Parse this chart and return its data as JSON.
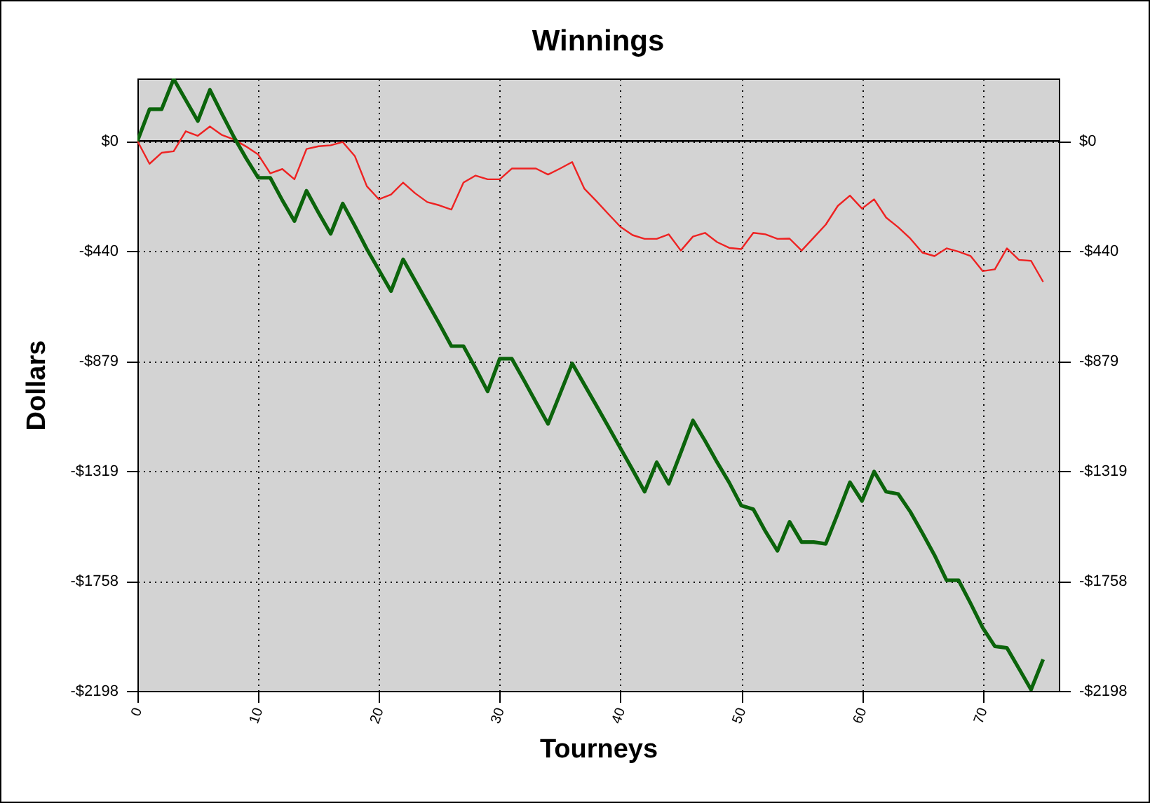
{
  "chart_data": {
    "type": "line",
    "title": "Winnings",
    "xlabel": "Tourneys",
    "ylabel": "Dollars",
    "x": [
      0,
      1,
      2,
      3,
      4,
      5,
      6,
      7,
      8,
      9,
      10,
      11,
      12,
      13,
      14,
      15,
      16,
      17,
      18,
      19,
      20,
      21,
      22,
      23,
      24,
      25,
      26,
      27,
      28,
      29,
      30,
      31,
      32,
      33,
      34,
      35,
      36,
      37,
      38,
      39,
      40,
      41,
      42,
      43,
      44,
      45,
      46,
      47,
      48,
      49,
      50,
      51,
      52,
      53,
      54,
      55,
      56,
      57,
      58,
      59,
      60,
      61,
      62,
      63,
      64,
      65,
      66,
      67,
      68,
      69,
      70,
      71,
      72,
      73,
      74,
      75
    ],
    "series": [
      {
        "color": "#ee2222",
        "values": [
          0,
          -91,
          -47,
          -41,
          39,
          21,
          58,
          24,
          6,
          -22,
          -54,
          -129,
          -112,
          -153,
          -32,
          -21,
          -17,
          -4,
          -60,
          -181,
          -233,
          -214,
          -166,
          -209,
          -244,
          -257,
          -274,
          -166,
          -138,
          -153,
          -153,
          -110,
          -110,
          -110,
          -134,
          -110,
          -84,
          -190,
          -240,
          -292,
          -343,
          -376,
          -391,
          -391,
          -373,
          -438,
          -382,
          -367,
          -404,
          -427,
          -432,
          -367,
          -373,
          -391,
          -390,
          -438,
          -386,
          -334,
          -259,
          -218,
          -270,
          -233,
          -306,
          -345,
          -390,
          -446,
          -460,
          -429,
          -442,
          -460,
          -520,
          -513,
          -429,
          -475,
          -479,
          -563
        ]
      },
      {
        "color": "#0b640b",
        "values": [
          0,
          127,
          127,
          248,
          164,
          80,
          205,
          108,
          15,
          -69,
          -147,
          -147,
          -237,
          -320,
          -199,
          -287,
          -371,
          -250,
          -339,
          -432,
          -516,
          -600,
          -473,
          -559,
          -645,
          -731,
          -820,
          -820,
          -908,
          -1001,
          -870,
          -870,
          -956,
          -1044,
          -1131,
          -1010,
          -889,
          -973,
          -1057,
          -1142,
          -1228,
          -1314,
          -1402,
          -1284,
          -1370,
          -1245,
          -1117,
          -1198,
          -1284,
          -1365,
          -1457,
          -1472,
          -1560,
          -1638,
          -1522,
          -1603,
          -1603,
          -1610,
          -1489,
          -1364,
          -1439,
          -1321,
          -1402,
          -1411,
          -1482,
          -1567,
          -1655,
          -1756,
          -1756,
          -1849,
          -1946,
          -2020,
          -2026,
          -2109,
          -2193,
          -2072
        ]
      }
    ],
    "xlim": [
      0,
      76.3
    ],
    "xticks": [
      0,
      10,
      20,
      30,
      40,
      50,
      60,
      70
    ],
    "ylim": [
      -2198,
      250
    ],
    "yticks": [
      {
        "value": 0,
        "label": "$0"
      },
      {
        "value": -439.6,
        "label": "-$440"
      },
      {
        "value": -879.2,
        "label": "-$879"
      },
      {
        "value": -1318.8,
        "label": "-$1319"
      },
      {
        "value": -1758.4,
        "label": "-$1758"
      },
      {
        "value": -2198,
        "label": "-$2198"
      }
    ],
    "y2lim": [
      -2198,
      250
    ],
    "y2ticks": [
      {
        "value": 0,
        "label": "$0"
      },
      {
        "value": -439.6,
        "label": "-$440"
      },
      {
        "value": -879.2,
        "label": "-$879"
      },
      {
        "value": -1318.8,
        "label": "-$1319"
      },
      {
        "value": -1758.4,
        "label": "-$1758"
      },
      {
        "value": -2198,
        "label": "-$2198"
      }
    ],
    "ref_lines": [
      {
        "axis": "y",
        "value": 0,
        "color": "#000000"
      }
    ],
    "grid": true
  }
}
